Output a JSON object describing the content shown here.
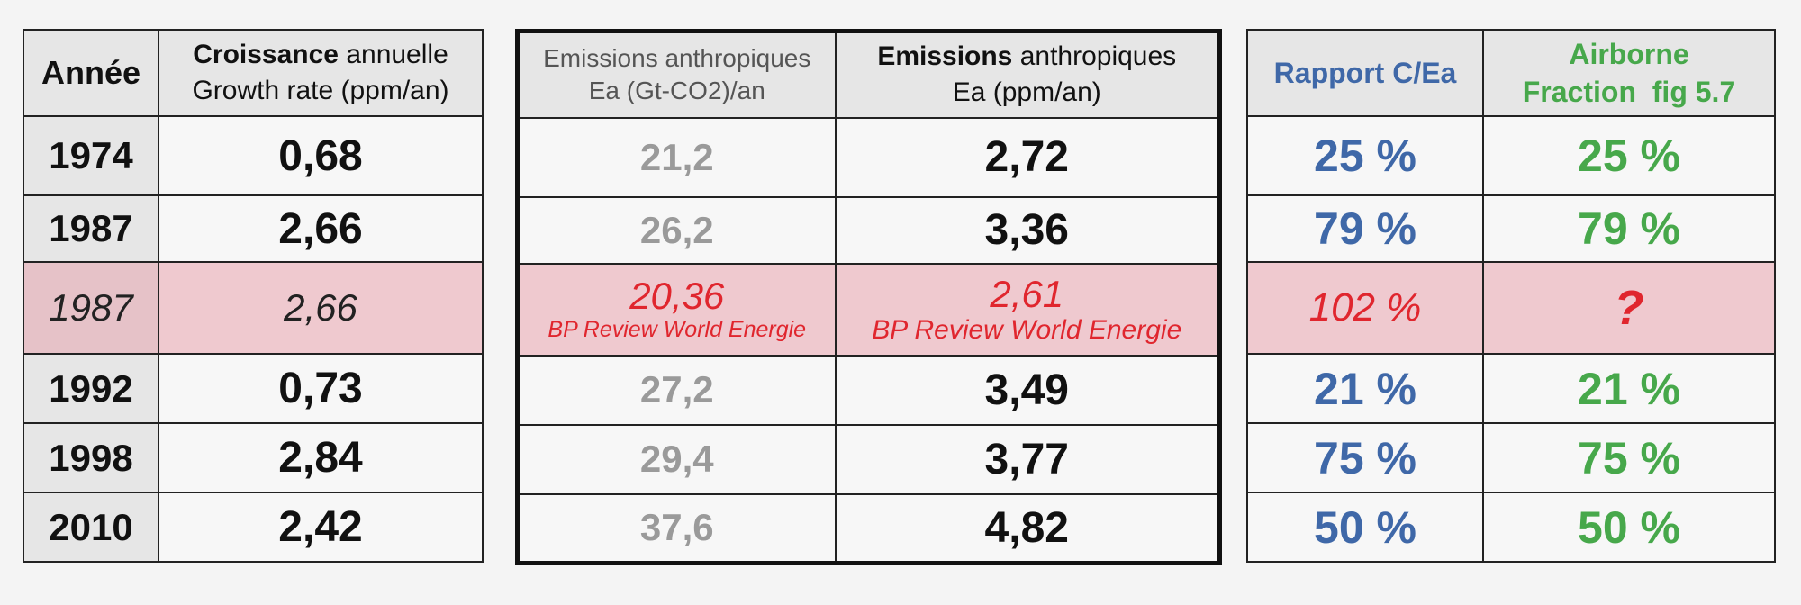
{
  "table1": {
    "header": {
      "year": "Année",
      "growth_bold": "Croissance",
      "growth_rest": " annuelle",
      "growth_line2": "Growth rate (ppm/an)"
    },
    "rows": [
      {
        "year": "1974",
        "growth": "0,68"
      },
      {
        "year": "1987",
        "growth": "2,66"
      },
      {
        "year": "1987",
        "growth": "2,66"
      },
      {
        "year": "1992",
        "growth": "0,73"
      },
      {
        "year": "1998",
        "growth": "2,84"
      },
      {
        "year": "2010",
        "growth": "2,42"
      }
    ]
  },
  "table2": {
    "header": {
      "col1_line1": "Emissions anthropiques",
      "col1_line2": "Ea (Gt-CO2)/an",
      "col2_bold": "Emissions",
      "col2_rest": " anthropiques",
      "col2_line2": "Ea (ppm/an)"
    },
    "rows": [
      {
        "gt": "21,2",
        "ppm": "2,72"
      },
      {
        "gt": "26,2",
        "ppm": "3,36"
      },
      {
        "gt": "20,36",
        "gt_note": "BP Review World Energie",
        "ppm": "2,61",
        "ppm_note": "BP Review World Energie"
      },
      {
        "gt": "27,2",
        "ppm": "3,49"
      },
      {
        "gt": "29,4",
        "ppm": "3,77"
      },
      {
        "gt": "37,6",
        "ppm": "4,82"
      }
    ]
  },
  "table3": {
    "header": {
      "ratio": "Rapport C/Ea",
      "airborne_line1": "Airborne",
      "airborne_line2": "Fraction  fig 5.7"
    },
    "rows": [
      {
        "ratio": "25 %",
        "airborne": "25 %"
      },
      {
        "ratio": "79 %",
        "airborne": "79 %"
      },
      {
        "ratio": "102 %",
        "airborne": "?"
      },
      {
        "ratio": "21 %",
        "airborne": "21 %"
      },
      {
        "ratio": "75 %",
        "airborne": "75 %"
      },
      {
        "ratio": "50 %",
        "airborne": "50 %"
      }
    ]
  },
  "colors": {
    "highlight_row": "#efc9cf",
    "header_bg": "#e6e6e6",
    "blue": "#3f68a8",
    "green": "#47a84b",
    "red": "#e0262e",
    "gray": "#9a9a9a"
  }
}
